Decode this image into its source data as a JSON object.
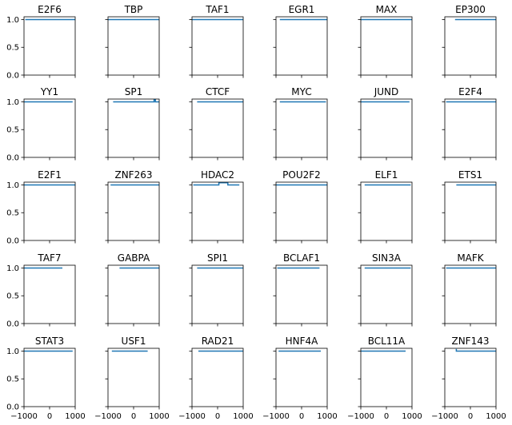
{
  "chart_data": {
    "type": "line",
    "layout": {
      "rows": 5,
      "cols": 6
    },
    "shared_x_axis": {
      "xlim": [
        -1000,
        1000
      ],
      "ticks": [
        -1000,
        0,
        1000
      ],
      "tick_labels": [
        "−1000",
        "0",
        "1000"
      ]
    },
    "shared_y_axis": {
      "ylim": [
        0,
        1.05
      ],
      "ticks": [
        0.0,
        0.5,
        1.0
      ],
      "tick_labels": [
        "0.0",
        "0.5",
        "1.0"
      ]
    },
    "line_color": "#1f77b4",
    "panels": [
      {
        "title": "E2F6",
        "segments": [
          {
            "x": [
              -950,
              1000
            ],
            "y": [
              1.0,
              1.0
            ]
          }
        ]
      },
      {
        "title": "TBP",
        "segments": [
          {
            "x": [
              -1000,
              1000
            ],
            "y": [
              1.0,
              1.0
            ]
          }
        ]
      },
      {
        "title": "TAF1",
        "segments": [
          {
            "x": [
              -1000,
              1000
            ],
            "y": [
              1.0,
              1.0
            ]
          }
        ]
      },
      {
        "title": "EGR1",
        "segments": [
          {
            "x": [
              -850,
              1000
            ],
            "y": [
              1.0,
              1.0
            ]
          }
        ]
      },
      {
        "title": "MAX",
        "segments": [
          {
            "x": [
              -1000,
              1000
            ],
            "y": [
              1.0,
              1.0
            ]
          }
        ]
      },
      {
        "title": "EP300",
        "segments": [
          {
            "x": [
              -600,
              1000
            ],
            "y": [
              1.0,
              1.0
            ]
          }
        ]
      },
      {
        "title": "YY1",
        "segments": [
          {
            "x": [
              -1000,
              900
            ],
            "y": [
              1.0,
              1.0
            ]
          }
        ]
      },
      {
        "title": "SP1",
        "segments": [
          {
            "x": [
              -800,
              800,
              800,
              850,
              850,
              1000
            ],
            "y": [
              1.0,
              1.0,
              1.04,
              1.04,
              1.0,
              1.0
            ]
          }
        ]
      },
      {
        "title": "CTCF",
        "segments": [
          {
            "x": [
              -800,
              1000
            ],
            "y": [
              1.0,
              1.0
            ]
          }
        ]
      },
      {
        "title": "MYC",
        "segments": [
          {
            "x": [
              -850,
              950
            ],
            "y": [
              1.0,
              1.0
            ]
          }
        ]
      },
      {
        "title": "JUND",
        "segments": [
          {
            "x": [
              -1000,
              900
            ],
            "y": [
              1.0,
              1.0
            ]
          }
        ]
      },
      {
        "title": "E2F4",
        "segments": [
          {
            "x": [
              -950,
              1000
            ],
            "y": [
              1.0,
              1.0
            ]
          }
        ]
      },
      {
        "title": "E2F1",
        "segments": [
          {
            "x": [
              -1000,
              1000
            ],
            "y": [
              1.0,
              1.0
            ]
          }
        ]
      },
      {
        "title": "ZNF263",
        "segments": [
          {
            "x": [
              -900,
              1000
            ],
            "y": [
              1.0,
              1.0
            ]
          }
        ]
      },
      {
        "title": "HDAC2",
        "segments": [
          {
            "x": [
              -950,
              50,
              50,
              400,
              400,
              850
            ],
            "y": [
              1.0,
              1.0,
              1.04,
              1.04,
              1.0,
              1.0
            ]
          }
        ]
      },
      {
        "title": "POU2F2",
        "segments": [
          {
            "x": [
              -1000,
              1000
            ],
            "y": [
              1.0,
              1.0
            ]
          }
        ]
      },
      {
        "title": "ELF1",
        "segments": [
          {
            "x": [
              -850,
              950
            ],
            "y": [
              1.0,
              1.0
            ]
          }
        ]
      },
      {
        "title": "ETS1",
        "segments": [
          {
            "x": [
              -550,
              1000
            ],
            "y": [
              1.0,
              1.0
            ]
          }
        ]
      },
      {
        "title": "TAF7",
        "segments": [
          {
            "x": [
              -1000,
              500
            ],
            "y": [
              1.0,
              1.0
            ]
          }
        ]
      },
      {
        "title": "GABPA",
        "segments": [
          {
            "x": [
              -550,
              1000
            ],
            "y": [
              1.0,
              1.0
            ]
          }
        ]
      },
      {
        "title": "SPI1",
        "segments": [
          {
            "x": [
              -800,
              1000
            ],
            "y": [
              1.0,
              1.0
            ]
          }
        ]
      },
      {
        "title": "BCLAF1",
        "segments": [
          {
            "x": [
              -950,
              700
            ],
            "y": [
              1.0,
              1.0
            ]
          }
        ]
      },
      {
        "title": "SIN3A",
        "segments": [
          {
            "x": [
              -850,
              950
            ],
            "y": [
              1.0,
              1.0
            ]
          }
        ]
      },
      {
        "title": "MAFK",
        "segments": [
          {
            "x": [
              -950,
              1000
            ],
            "y": [
              1.0,
              1.0
            ]
          }
        ]
      },
      {
        "title": "STAT3",
        "segments": [
          {
            "x": [
              -1000,
              900
            ],
            "y": [
              1.0,
              1.0
            ]
          }
        ]
      },
      {
        "title": "USF1",
        "segments": [
          {
            "x": [
              -850,
              550
            ],
            "y": [
              1.0,
              1.0
            ]
          }
        ]
      },
      {
        "title": "RAD21",
        "segments": [
          {
            "x": [
              -750,
              1000
            ],
            "y": [
              1.0,
              1.0
            ]
          }
        ]
      },
      {
        "title": "HNF4A",
        "segments": [
          {
            "x": [
              -900,
              750
            ],
            "y": [
              1.0,
              1.0
            ]
          }
        ]
      },
      {
        "title": "BCL11A",
        "segments": [
          {
            "x": [
              -1000,
              750
            ],
            "y": [
              1.0,
              1.0
            ]
          }
        ]
      },
      {
        "title": "ZNF143",
        "segments": [
          {
            "x": [
              -550,
              -550,
              1000
            ],
            "y": [
              1.04,
              1.0,
              1.0
            ]
          }
        ]
      }
    ]
  }
}
